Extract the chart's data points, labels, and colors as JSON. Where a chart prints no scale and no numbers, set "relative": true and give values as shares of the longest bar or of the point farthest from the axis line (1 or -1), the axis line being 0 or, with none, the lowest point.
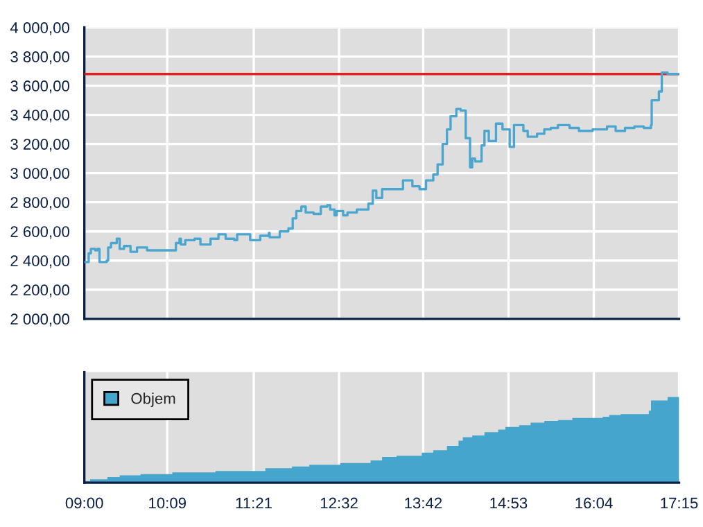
{
  "chart_data": [
    {
      "type": "step",
      "x": [
        9.0,
        9.06,
        9.09,
        9.15,
        9.18,
        9.21,
        9.31,
        9.33,
        9.37,
        9.45,
        9.49,
        9.55,
        9.64,
        9.73,
        9.87,
        10.24,
        10.27,
        10.32,
        10.34,
        10.4,
        10.53,
        10.61,
        10.75,
        10.86,
        10.96,
        11.08,
        11.12,
        11.3,
        11.44,
        11.56,
        11.57,
        11.71,
        11.83,
        11.89,
        11.94,
        12.01,
        12.07,
        12.18,
        12.28,
        12.37,
        12.41,
        12.47,
        12.5,
        12.59,
        12.65,
        12.78,
        12.94,
        13.0,
        13.05,
        13.13,
        13.42,
        13.55,
        13.65,
        13.74,
        13.84,
        13.9,
        13.97,
        14.03,
        14.08,
        14.16,
        14.22,
        14.29,
        14.35,
        14.38,
        14.42,
        14.51,
        14.55,
        14.61,
        14.71,
        14.8,
        14.9,
        14.96,
        15.09,
        15.15,
        15.28,
        15.38,
        15.47,
        15.57,
        15.73,
        15.86,
        16.05,
        16.25,
        16.37,
        16.5,
        16.63,
        16.76,
        16.86,
        16.87,
        16.97,
        17.01,
        17.09,
        17.25
      ],
      "series": [
        {
          "color": "#4aa6cf",
          "values": [
            2390,
            2450,
            2480,
            2470,
            2480,
            2390,
            2400,
            2490,
            2520,
            2550,
            2480,
            2500,
            2460,
            2490,
            2470,
            2470,
            2520,
            2550,
            2510,
            2540,
            2550,
            2510,
            2550,
            2580,
            2550,
            2540,
            2580,
            2540,
            2570,
            2590,
            2560,
            2600,
            2620,
            2690,
            2740,
            2770,
            2730,
            2720,
            2770,
            2780,
            2750,
            2710,
            2740,
            2710,
            2730,
            2750,
            2790,
            2880,
            2830,
            2890,
            2950,
            2910,
            2890,
            2950,
            2990,
            3060,
            3200,
            3300,
            3390,
            3440,
            3430,
            3240,
            3040,
            3100,
            3080,
            3190,
            3290,
            3220,
            3340,
            3300,
            3180,
            3330,
            3290,
            3250,
            3270,
            3300,
            3310,
            3330,
            3310,
            3290,
            3300,
            3320,
            3290,
            3310,
            3320,
            3310,
            3330,
            3500,
            3560,
            3690,
            3680,
            3680
          ]
        }
      ],
      "xlim": [
        9,
        17.25
      ],
      "xticks": [
        {
          "value": 9,
          "label": null
        },
        {
          "value": 10.15,
          "label": null
        },
        {
          "value": 11.35,
          "label": null
        },
        {
          "value": 12.533,
          "label": null
        },
        {
          "value": 13.7,
          "label": null
        },
        {
          "value": 14.883,
          "label": null
        },
        {
          "value": 16.067,
          "label": null
        },
        {
          "value": 17.25,
          "label": null
        }
      ],
      "ylim": [
        2000,
        4000
      ],
      "yticks": [
        {
          "value": 2000,
          "label": "2 000,00"
        },
        {
          "value": 2200,
          "label": "2 200,00"
        },
        {
          "value": 2400,
          "label": "2 400,00"
        },
        {
          "value": 2600,
          "label": "2 600,00"
        },
        {
          "value": 2800,
          "label": "2 800,00"
        },
        {
          "value": 3000,
          "label": "3 000,00"
        },
        {
          "value": 3200,
          "label": "3 200,00"
        },
        {
          "value": 3400,
          "label": "3 400,00"
        },
        {
          "value": 3600,
          "label": "3 600,00"
        },
        {
          "value": 3800,
          "label": "3 800,00"
        },
        {
          "value": 4000,
          "label": "4 000,00"
        }
      ],
      "ref_lines": [
        {
          "axis": "y",
          "value": 3680,
          "color": "#e02020"
        }
      ],
      "tick_labels": "y",
      "grid": true
    },
    {
      "type": "area",
      "relative": true,
      "x": [
        9.0,
        9.08,
        9.32,
        9.49,
        9.78,
        10.22,
        10.82,
        11.51,
        11.88,
        12.12,
        12.55,
        12.97,
        13.13,
        13.33,
        13.68,
        13.84,
        14.03,
        14.19,
        14.25,
        14.38,
        14.55,
        14.74,
        14.84,
        15.03,
        15.19,
        15.38,
        15.57,
        15.77,
        16.19,
        16.28,
        16.44,
        16.83,
        16.86,
        17.09,
        17.25
      ],
      "series": [
        {
          "name": "Objem",
          "color": "#46a5cd",
          "values": [
            0.02,
            0.04,
            0.065,
            0.087,
            0.1,
            0.12,
            0.136,
            0.17,
            0.19,
            0.21,
            0.23,
            0.26,
            0.3,
            0.315,
            0.35,
            0.38,
            0.43,
            0.49,
            0.53,
            0.55,
            0.59,
            0.62,
            0.65,
            0.67,
            0.7,
            0.72,
            0.73,
            0.755,
            0.77,
            0.79,
            0.8,
            0.84,
            0.96,
            1,
            1
          ]
        }
      ],
      "xlim": [
        9,
        17.25
      ],
      "xticks": [
        {
          "value": 9,
          "label": "09:00"
        },
        {
          "value": 10.15,
          "label": "10:09"
        },
        {
          "value": 11.35,
          "label": "11:21"
        },
        {
          "value": 12.533,
          "label": "12:32"
        },
        {
          "value": 13.7,
          "label": "13:42"
        },
        {
          "value": 14.883,
          "label": "14:53"
        },
        {
          "value": 16.067,
          "label": "16:04"
        },
        {
          "value": 17.25,
          "label": "17:15"
        }
      ],
      "tick_labels": "x",
      "legend": "top left",
      "grid": "x"
    }
  ]
}
